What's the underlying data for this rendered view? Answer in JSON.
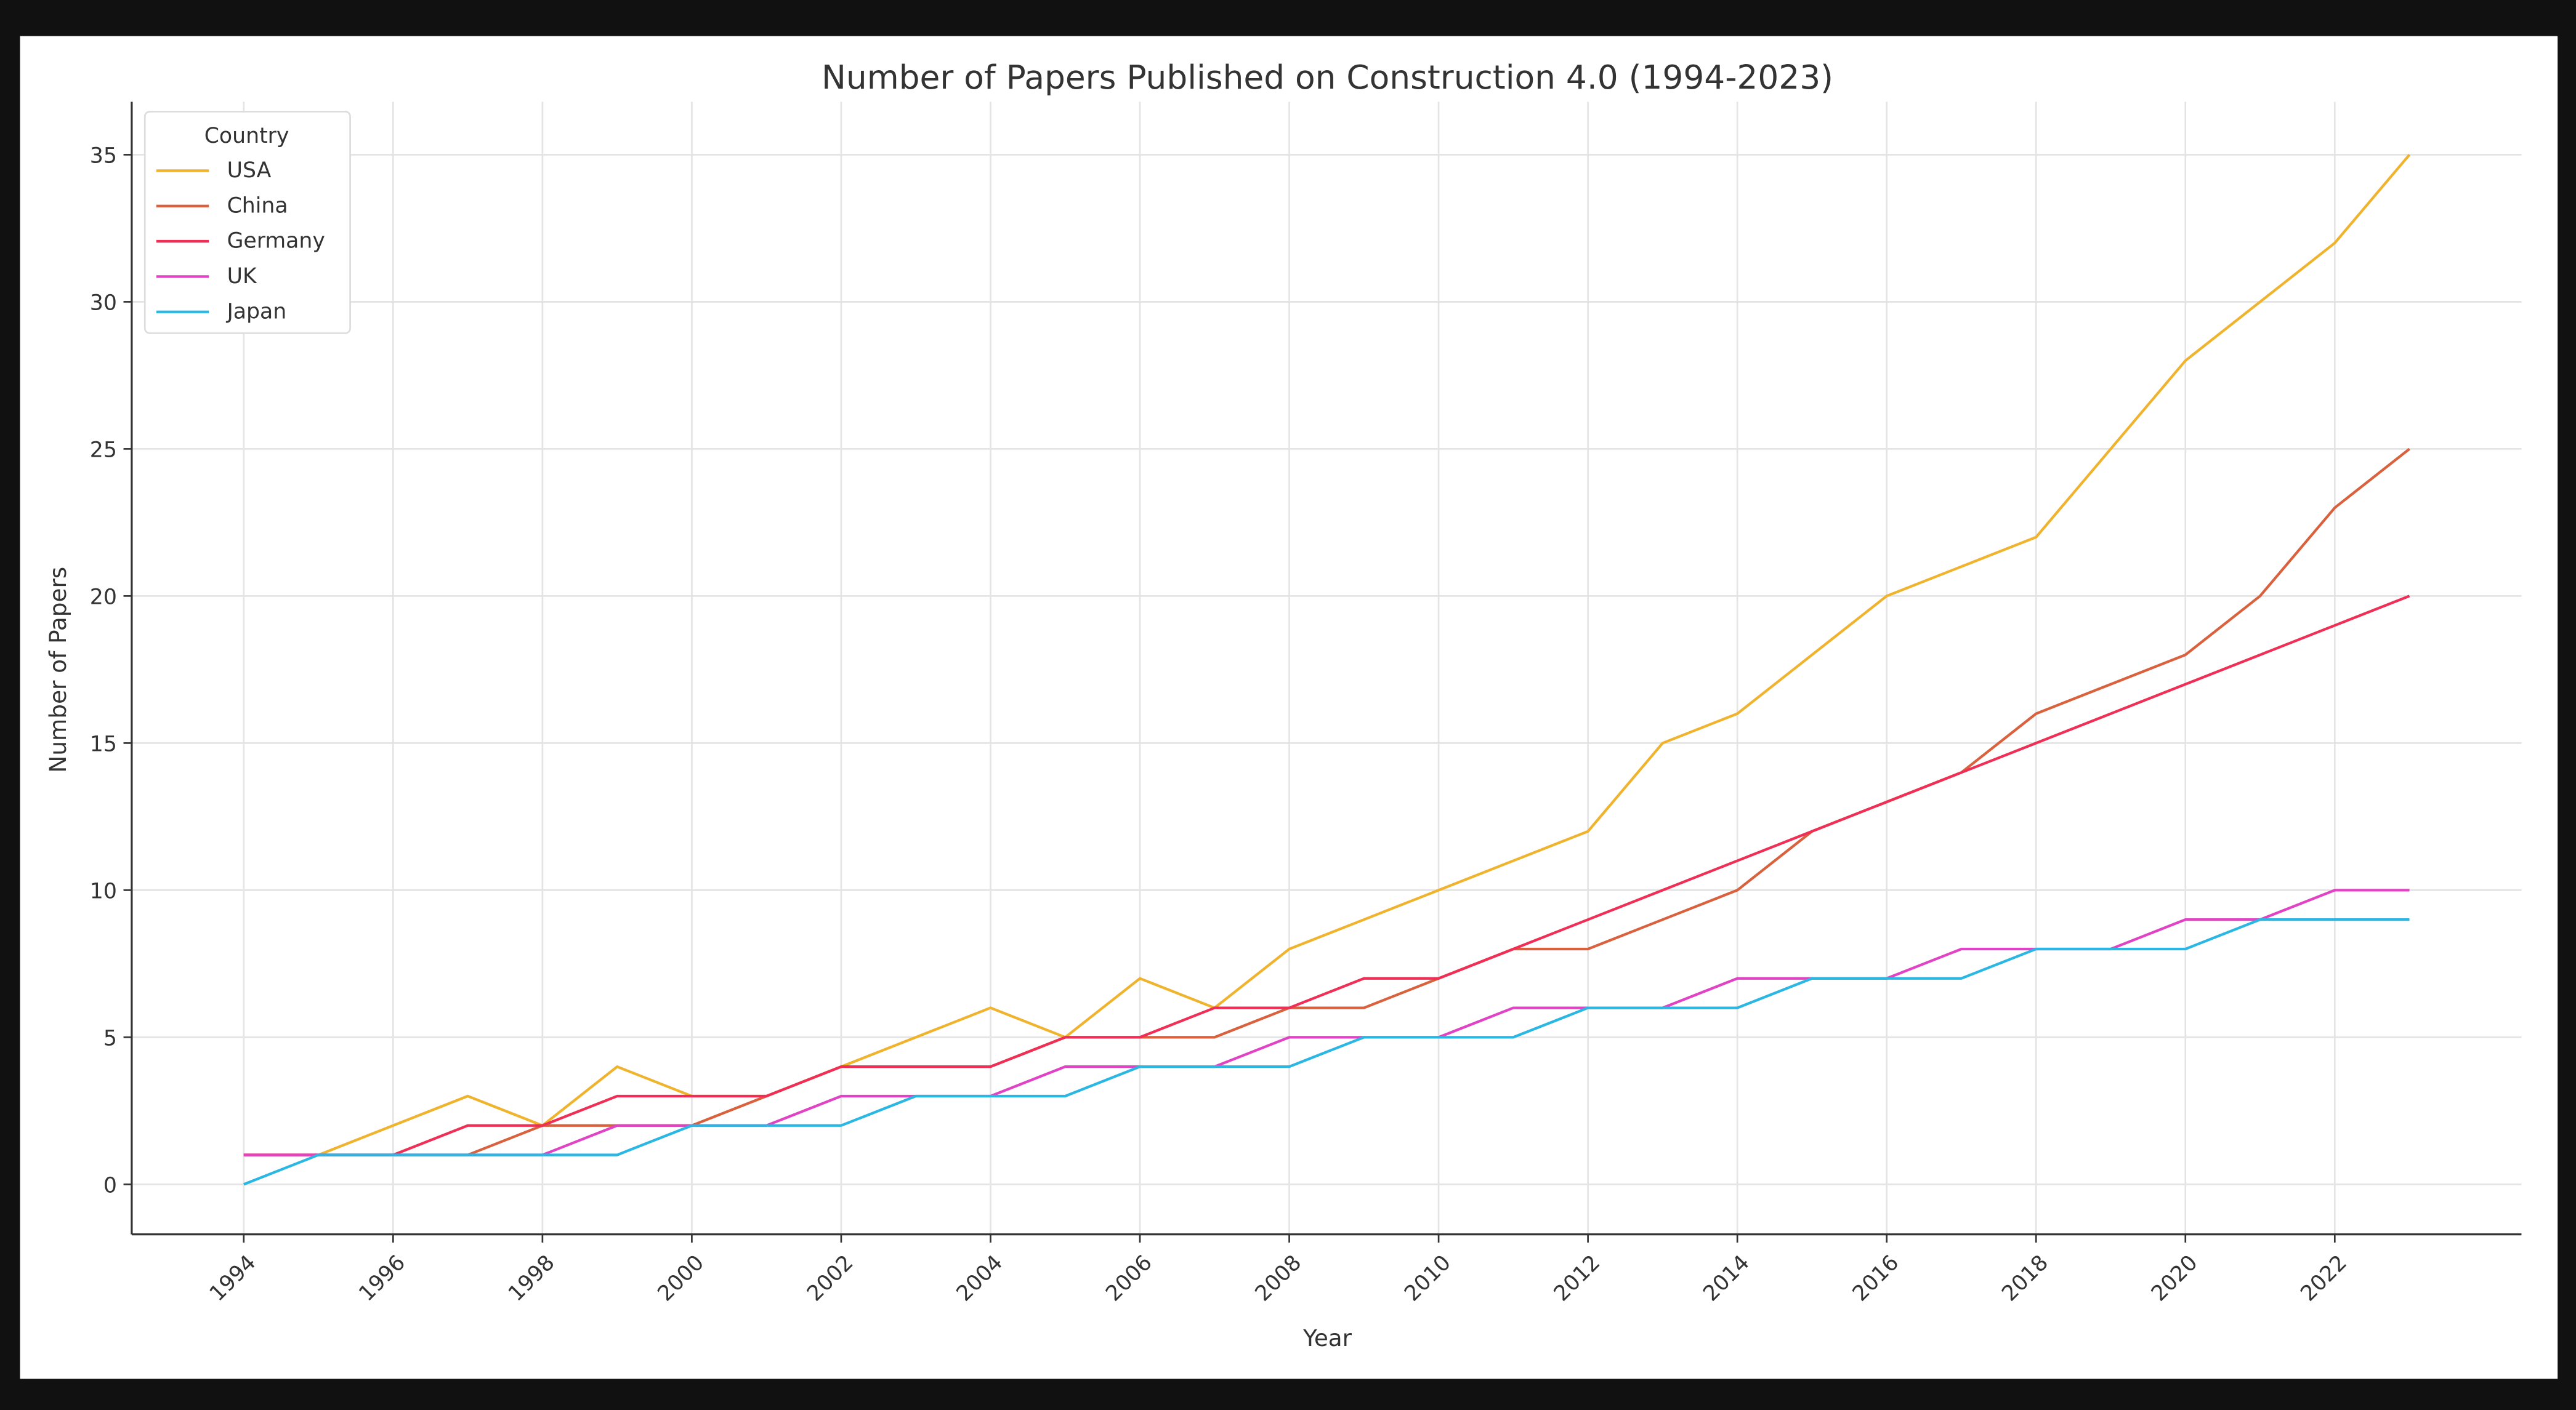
{
  "chart_data": {
    "type": "line",
    "title": "Number of Papers Published on Construction 4.0 (1994-2023)",
    "xlabel": "Year",
    "ylabel": "Number of Papers",
    "xlim": [
      1992.5,
      2024.5
    ],
    "ylim": [
      -1.7,
      36.8
    ],
    "xticks": [
      1994,
      1996,
      1998,
      2000,
      2002,
      2004,
      2006,
      2008,
      2010,
      2012,
      2014,
      2016,
      2018,
      2020,
      2022
    ],
    "yticks": [
      0,
      5,
      10,
      15,
      20,
      25,
      30,
      35
    ],
    "grid": true,
    "legend": {
      "title": "Country",
      "placement": "top-left"
    },
    "x": [
      1994,
      1995,
      1996,
      1997,
      1998,
      1999,
      2000,
      2001,
      2002,
      2003,
      2004,
      2005,
      2006,
      2007,
      2008,
      2009,
      2010,
      2011,
      2012,
      2013,
      2014,
      2015,
      2016,
      2017,
      2018,
      2019,
      2020,
      2021,
      2022,
      2023
    ],
    "series": [
      {
        "name": "USA",
        "color": "#f0b32e",
        "values": [
          1,
          1,
          2,
          3,
          2,
          4,
          3,
          3,
          4,
          5,
          6,
          5,
          7,
          6,
          8,
          9,
          10,
          11,
          12,
          15,
          16,
          18,
          20,
          21,
          22,
          25,
          28,
          30,
          32,
          35
        ]
      },
      {
        "name": "China",
        "color": "#d9613d",
        "values": [
          1,
          1,
          1,
          1,
          2,
          2,
          2,
          3,
          4,
          4,
          4,
          5,
          5,
          5,
          6,
          6,
          7,
          8,
          8,
          9,
          10,
          12,
          13,
          14,
          16,
          17,
          18,
          20,
          23,
          25
        ]
      },
      {
        "name": "Germany",
        "color": "#ef2f55",
        "values": [
          1,
          1,
          1,
          2,
          2,
          3,
          3,
          3,
          4,
          4,
          4,
          5,
          5,
          6,
          6,
          7,
          7,
          8,
          9,
          10,
          11,
          12,
          13,
          14,
          15,
          16,
          17,
          18,
          19,
          20
        ]
      },
      {
        "name": "UK",
        "color": "#e043c4",
        "values": [
          1,
          1,
          1,
          1,
          1,
          2,
          2,
          2,
          3,
          3,
          3,
          4,
          4,
          4,
          5,
          5,
          5,
          6,
          6,
          6,
          7,
          7,
          7,
          8,
          8,
          8,
          9,
          9,
          10,
          10
        ]
      },
      {
        "name": "Japan",
        "color": "#2bb7e3",
        "values": [
          0,
          1,
          1,
          1,
          1,
          1,
          2,
          2,
          2,
          3,
          3,
          3,
          4,
          4,
          4,
          5,
          5,
          5,
          6,
          6,
          6,
          7,
          7,
          7,
          8,
          8,
          8,
          9,
          9,
          9
        ]
      }
    ]
  }
}
